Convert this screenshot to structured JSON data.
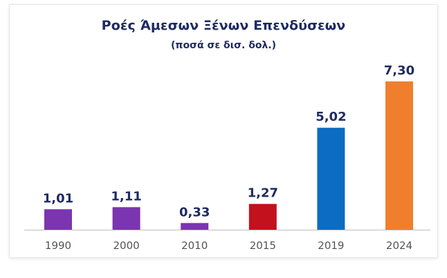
{
  "chart_data": {
    "type": "bar",
    "title": "Ροές Άμεσων Ξένων Επενδύσεων",
    "subtitle": "(ποσά σε δισ. δολ.)",
    "categories": [
      "1990",
      "2000",
      "2010",
      "2015",
      "2019",
      "2024"
    ],
    "values": [
      1.01,
      1.11,
      0.33,
      1.27,
      5.02,
      7.3
    ],
    "value_labels": [
      "1,01",
      "1,11",
      "0,33",
      "1,27",
      "5,02",
      "7,30"
    ],
    "bar_colors": [
      "#7b35b0",
      "#7b35b0",
      "#7b35b0",
      "#c3111d",
      "#0b6cc2",
      "#f07f2d"
    ],
    "xlabel": "",
    "ylabel": "",
    "ylim": [
      0,
      7.3
    ],
    "grid": false,
    "legend": "none"
  },
  "colors": {
    "title": "#1f2a63",
    "axis": "#bfbfbf",
    "tick_text": "#555555"
  }
}
